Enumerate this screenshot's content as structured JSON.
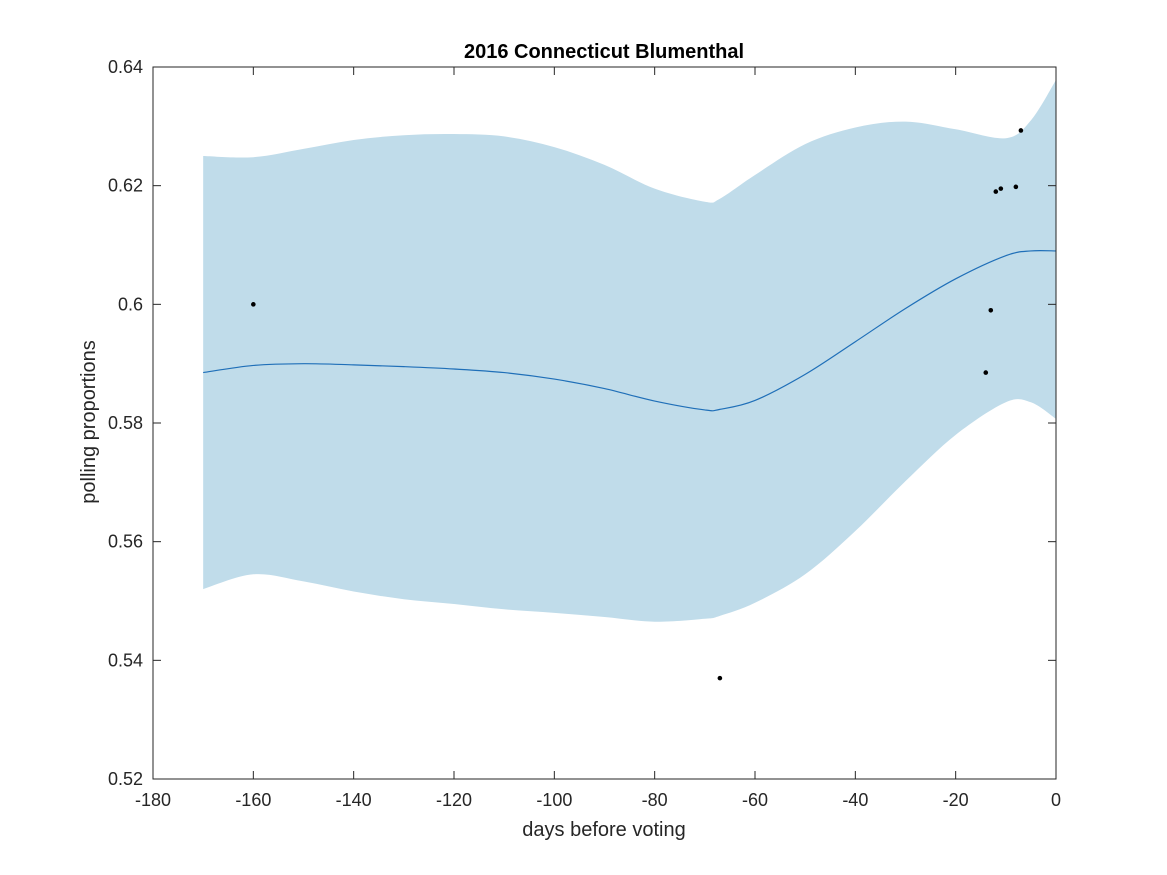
{
  "chart_data": {
    "type": "line",
    "title": "2016 Connecticut Blumenthal",
    "xlabel": "days before voting",
    "ylabel": "polling proportions",
    "xlim": [
      -180,
      0
    ],
    "ylim": [
      0.52,
      0.64
    ],
    "xticks": [
      -180,
      -160,
      -140,
      -120,
      -100,
      -80,
      -60,
      -40,
      -20,
      0
    ],
    "xtick_labels": [
      "-180",
      "-160",
      "-140",
      "-120",
      "-100",
      "-80",
      "-60",
      "-40",
      "-20",
      "0"
    ],
    "yticks": [
      0.52,
      0.54,
      0.56,
      0.58,
      0.6,
      0.62,
      0.64
    ],
    "ytick_labels": [
      "0.52",
      "0.54",
      "0.56",
      "0.58",
      "0.6",
      "0.62",
      "0.64"
    ],
    "grid": false,
    "colors": {
      "band": "#c0dcea",
      "mean_line": "#1f6fb8",
      "points": "#000000",
      "axes": "#262626"
    },
    "band": {
      "x": [
        -170,
        -160,
        -150,
        -140,
        -130,
        -120,
        -110,
        -100,
        -90,
        -80,
        -70,
        -67,
        -60,
        -50,
        -40,
        -30,
        -20,
        -10,
        -5,
        0
      ],
      "upper": [
        0.625,
        0.6248,
        0.6262,
        0.6277,
        0.6285,
        0.6287,
        0.6283,
        0.6265,
        0.6235,
        0.6195,
        0.6173,
        0.6178,
        0.6218,
        0.627,
        0.6298,
        0.6308,
        0.6295,
        0.628,
        0.631,
        0.6378
      ],
      "lower": [
        0.552,
        0.5545,
        0.5533,
        0.5516,
        0.5503,
        0.5495,
        0.5486,
        0.548,
        0.5473,
        0.5465,
        0.547,
        0.5475,
        0.5497,
        0.5545,
        0.5618,
        0.5702,
        0.578,
        0.5835,
        0.5835,
        0.5807
      ]
    },
    "series": [
      {
        "x": [
          -170,
          -160,
          -150,
          -140,
          -130,
          -120,
          -110,
          -100,
          -90,
          -80,
          -70,
          -67,
          -60,
          -50,
          -40,
          -30,
          -20,
          -10,
          -5,
          0
        ],
        "values": [
          0.5885,
          0.5897,
          0.59,
          0.5898,
          0.5895,
          0.5891,
          0.5885,
          0.5874,
          0.5858,
          0.5837,
          0.5822,
          0.5823,
          0.5838,
          0.5882,
          0.5937,
          0.5993,
          0.6043,
          0.6082,
          0.609,
          0.609
        ]
      }
    ],
    "points": [
      {
        "x": -160,
        "y": 0.6
      },
      {
        "x": -67,
        "y": 0.537
      },
      {
        "x": -14,
        "y": 0.5885
      },
      {
        "x": -13,
        "y": 0.599
      },
      {
        "x": -12,
        "y": 0.619
      },
      {
        "x": -11,
        "y": 0.6195
      },
      {
        "x": -8,
        "y": 0.6198
      },
      {
        "x": -7,
        "y": 0.6293
      }
    ]
  }
}
